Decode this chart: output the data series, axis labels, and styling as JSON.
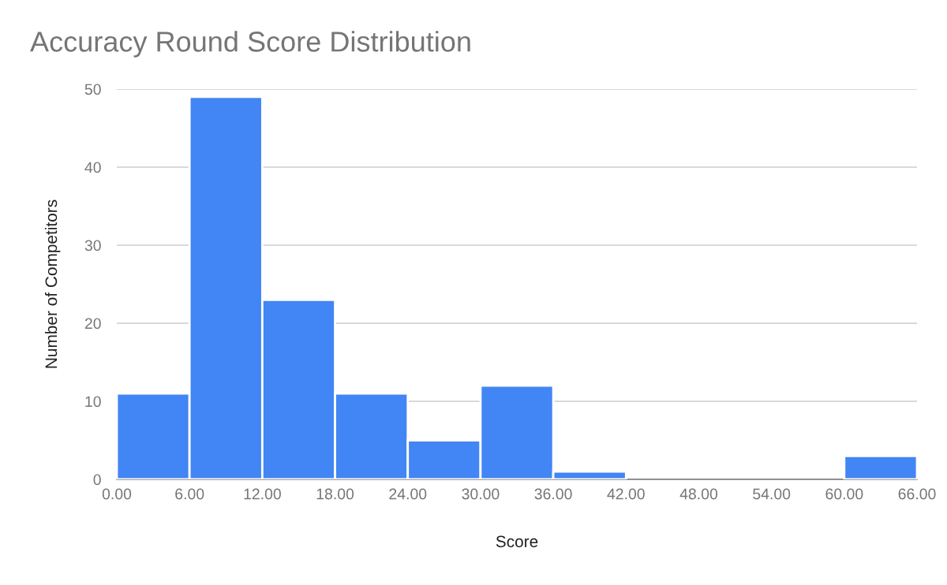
{
  "chart_data": {
    "type": "histogram",
    "title": "Accuracy Round Score Distribution",
    "xlabel": "Score",
    "ylabel": "Number of Competitors",
    "bins": [
      0,
      6,
      12,
      18,
      24,
      30,
      36,
      42,
      48,
      54,
      60,
      66
    ],
    "values": [
      11,
      49,
      23,
      11,
      5,
      12,
      1,
      0,
      0,
      0,
      3
    ],
    "color": "#4285f4",
    "xlim": [
      0,
      66
    ],
    "xticks": [
      {
        "value": 0,
        "label": "0.00"
      },
      {
        "value": 6,
        "label": "6.00"
      },
      {
        "value": 12,
        "label": "12.00"
      },
      {
        "value": 18,
        "label": "18.00"
      },
      {
        "value": 24,
        "label": "24.00"
      },
      {
        "value": 30,
        "label": "30.00"
      },
      {
        "value": 36,
        "label": "36.00"
      },
      {
        "value": 42,
        "label": "42.00"
      },
      {
        "value": 48,
        "label": "48.00"
      },
      {
        "value": 54,
        "label": "54.00"
      },
      {
        "value": 60,
        "label": "60.00"
      },
      {
        "value": 66,
        "label": "66.00"
      }
    ],
    "ylim": [
      0,
      50
    ],
    "yticks": [
      0,
      10,
      20,
      30,
      40,
      50
    ],
    "grid": "y"
  }
}
